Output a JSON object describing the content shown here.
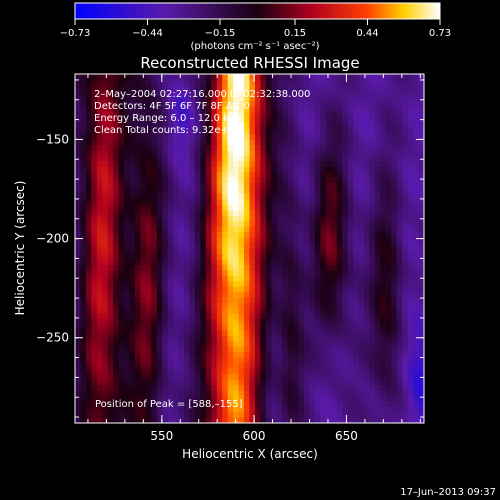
{
  "chart_data": {
    "type": "heatmap",
    "title": "Reconstructed RHESSI Image",
    "xlabel": "Heliocentric X (arcsec)",
    "ylabel": "Heliocentric Y (arcsec)",
    "xlim": [
      503,
      692
    ],
    "ylim": [
      -293,
      -117
    ],
    "x_ticks": [
      550,
      600,
      650
    ],
    "x_tick_labels": [
      "550",
      "600",
      "650"
    ],
    "y_ticks": [
      -250,
      -200,
      -150
    ],
    "y_tick_labels": [
      "−250",
      "−200",
      "−150"
    ],
    "colorbar": {
      "range": [
        -0.73,
        0.73
      ],
      "ticks": [
        -0.73,
        -0.44,
        -0.15,
        0.15,
        0.44,
        0.73
      ],
      "tick_labels": [
        "−0.73",
        "−0.44",
        "−0.15",
        "0.15",
        "0.44",
        "0.73"
      ],
      "unit_label": "(photons cm⁻² s⁻¹ asec⁻²)"
    },
    "annotations": [
      "2–May–2004 02:27:16.000 to 02:32:38.000",
      "Detectors: 4F 5F 6F 7F 8F  Att 0",
      "Energy Range: 6.0 – 12.0 keV",
      "Clean    Total counts: 9.32e+04"
    ],
    "peak_label": "Position of Peak = [588,–155]",
    "peak": [
      588,
      -155
    ],
    "timestamp": "17–Jun–2013 09:37",
    "grid": false,
    "colormap": "blue-purple-red-yellow-white"
  }
}
